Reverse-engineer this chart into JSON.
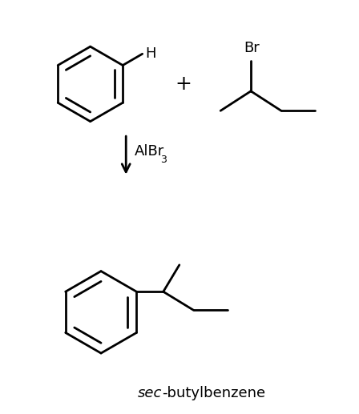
{
  "background_color": "#ffffff",
  "line_color": "#000000",
  "line_width": 2.0,
  "text_color": "#000000",
  "figsize": [
    4.48,
    5.17
  ],
  "dpi": 100,
  "plus_sign": "+",
  "catalyst": "AlBr",
  "catalyst_sub": "3",
  "product_label_italic": "sec",
  "product_label_normal": "-butylbenzene",
  "H_label": "H",
  "Br_label": "Br"
}
